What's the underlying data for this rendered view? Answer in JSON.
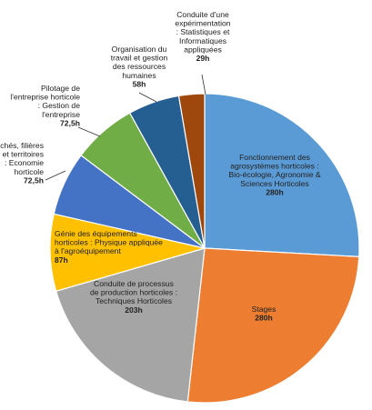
{
  "chart_data": {
    "type": "pie",
    "start": "top",
    "direction": "clockwise",
    "slices": [
      {
        "label": [
          "Fonctionnement des",
          "agrosystèmes horticoles :",
          "Bio-écologie, Agronomie &",
          "Sciences Horticoles"
        ],
        "value": 280,
        "value_label": "280h",
        "color": "#5b9bd5"
      },
      {
        "label": [
          "Stages"
        ],
        "value": 280,
        "value_label": "280h",
        "color": "#ed7d31"
      },
      {
        "label": [
          "Conduite de processus",
          "de production horticoles :",
          "Techniques Horticoles"
        ],
        "value": 203,
        "value_label": "203h",
        "color": "#a5a5a5"
      },
      {
        "label": [
          "Génie des équipements",
          "horticoles : Physique appliquée",
          "à l'agroéquipement"
        ],
        "value": 87,
        "value_label": "87h",
        "color": "#ffc000"
      },
      {
        "label": [
          "Marchés, filières",
          "et territoires",
          ": Economie",
          "horticole"
        ],
        "value": 72.5,
        "value_label": "72,5h",
        "color": "#4472c4"
      },
      {
        "label": [
          "Pilotage de",
          "l'entreprise horticole",
          ": Gestion de",
          "l'entreprise"
        ],
        "value": 72.5,
        "value_label": "72,5h",
        "color": "#70ad47"
      },
      {
        "label": [
          "Organisation du",
          "travail et gestion",
          "des ressources",
          "humaines"
        ],
        "value": 58,
        "value_label": "58h",
        "color": "#255e91"
      },
      {
        "label": [
          "Conduite d'une",
          "expérimentation",
          ":  Statistiques et",
          "Informatiques",
          "appliquées"
        ],
        "value": 29,
        "value_label": "29h",
        "color": "#9e480e"
      }
    ]
  }
}
